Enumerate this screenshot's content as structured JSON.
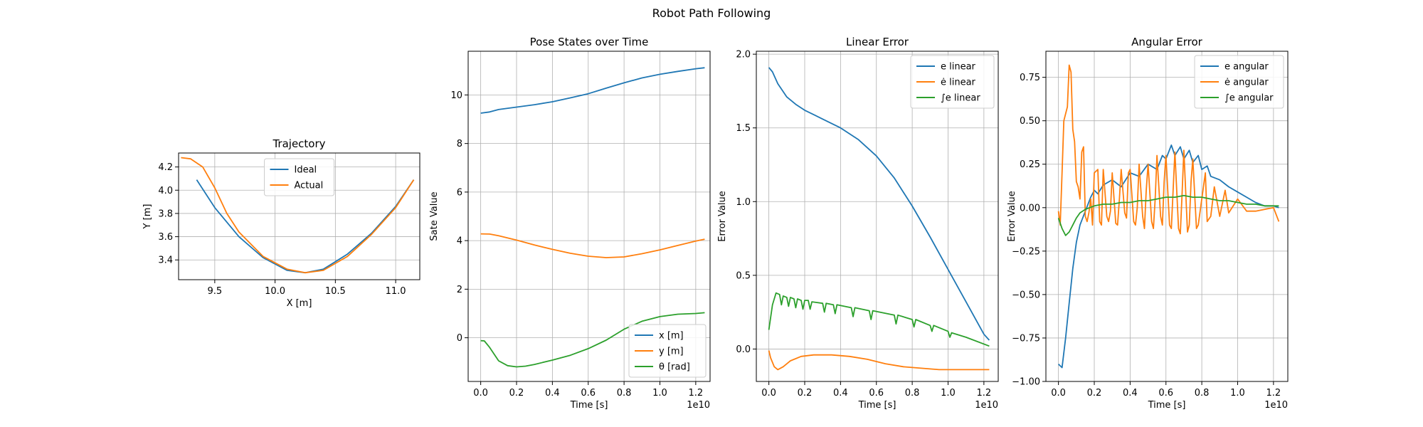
{
  "figure": {
    "title": "Robot Path Following"
  },
  "colors": {
    "c0": "#1f77b4",
    "c1": "#ff7f0e",
    "c2": "#2ca02c",
    "grid": "#b0b0b0"
  },
  "chart_data": [
    {
      "type": "line",
      "title": "Trajectory",
      "xlabel": "X [m]",
      "ylabel": "Y [m]",
      "xlim": [
        9.2,
        11.2
      ],
      "ylim": [
        3.23,
        4.32
      ],
      "xticks": [
        9.5,
        10.0,
        10.5,
        11.0
      ],
      "xtick_labels": [
        "9.5",
        "10.0",
        "10.5",
        "11.0"
      ],
      "yticks": [
        3.4,
        3.6,
        3.8,
        4.0,
        4.2
      ],
      "ytick_labels": [
        "3.4",
        "3.6",
        "3.8",
        "4.0",
        "4.2"
      ],
      "grid": true,
      "legend": "upper-center",
      "series": [
        {
          "name": "Ideal",
          "color": "c0",
          "x": [
            9.35,
            9.5,
            9.7,
            9.9,
            10.1,
            10.25,
            10.4,
            10.6,
            10.8,
            11.0,
            11.15
          ],
          "y": [
            4.09,
            3.85,
            3.6,
            3.42,
            3.31,
            3.29,
            3.32,
            3.45,
            3.63,
            3.86,
            4.09
          ]
        },
        {
          "name": "Actual",
          "color": "c1",
          "x": [
            9.22,
            9.3,
            9.4,
            9.5,
            9.6,
            9.7,
            9.9,
            10.1,
            10.25,
            10.4,
            10.6,
            10.8,
            11.0,
            11.15
          ],
          "y": [
            4.28,
            4.27,
            4.2,
            4.02,
            3.8,
            3.64,
            3.43,
            3.32,
            3.29,
            3.31,
            3.43,
            3.62,
            3.85,
            4.09
          ]
        }
      ]
    },
    {
      "type": "line",
      "title": "Pose States over Time",
      "xlabel": "Time [s]",
      "ylabel": "Sate Value",
      "x_offset_label": "1e10",
      "xlim": [
        -0.07,
        1.28
      ],
      "ylim": [
        -1.8,
        11.8
      ],
      "xticks": [
        0.0,
        0.2,
        0.4,
        0.6,
        0.8,
        1.0,
        1.2
      ],
      "xtick_labels": [
        "0.0",
        "0.2",
        "0.4",
        "0.6",
        "0.8",
        "1.0",
        "1.2"
      ],
      "yticks": [
        0,
        2,
        4,
        6,
        8,
        10
      ],
      "ytick_labels": [
        "0",
        "2",
        "4",
        "6",
        "8",
        "10"
      ],
      "grid": true,
      "legend": "lower-right",
      "series": [
        {
          "name": "x [m]",
          "color": "c0",
          "x": [
            0.0,
            0.05,
            0.1,
            0.2,
            0.3,
            0.4,
            0.5,
            0.6,
            0.7,
            0.8,
            0.9,
            1.0,
            1.1,
            1.2,
            1.25
          ],
          "y": [
            9.25,
            9.3,
            9.4,
            9.5,
            9.6,
            9.72,
            9.88,
            10.05,
            10.28,
            10.5,
            10.7,
            10.85,
            10.97,
            11.08,
            11.12
          ]
        },
        {
          "name": "y [m]",
          "color": "c1",
          "x": [
            0.0,
            0.05,
            0.1,
            0.2,
            0.3,
            0.4,
            0.5,
            0.6,
            0.7,
            0.8,
            0.9,
            1.0,
            1.1,
            1.2,
            1.25
          ],
          "y": [
            4.28,
            4.27,
            4.2,
            4.02,
            3.82,
            3.64,
            3.48,
            3.36,
            3.3,
            3.33,
            3.46,
            3.62,
            3.8,
            3.98,
            4.06
          ]
        },
        {
          "name": "θ [rad]",
          "color": "c2",
          "x": [
            0.0,
            0.02,
            0.05,
            0.1,
            0.15,
            0.2,
            0.25,
            0.3,
            0.4,
            0.5,
            0.6,
            0.7,
            0.8,
            0.9,
            1.0,
            1.1,
            1.2,
            1.25
          ],
          "y": [
            -0.12,
            -0.13,
            -0.4,
            -0.95,
            -1.15,
            -1.2,
            -1.17,
            -1.1,
            -0.92,
            -0.72,
            -0.45,
            -0.1,
            0.35,
            0.68,
            0.87,
            0.97,
            1.0,
            1.03
          ]
        }
      ]
    },
    {
      "type": "line",
      "title": "Linear Error",
      "xlabel": "Time [s]",
      "ylabel": "Error Value",
      "x_offset_label": "1e10",
      "xlim": [
        -0.07,
        1.28
      ],
      "ylim": [
        -0.22,
        2.02
      ],
      "xticks": [
        0.0,
        0.2,
        0.4,
        0.6,
        0.8,
        1.0,
        1.2
      ],
      "xtick_labels": [
        "0.0",
        "0.2",
        "0.4",
        "0.6",
        "0.8",
        "1.0",
        "1.2"
      ],
      "yticks": [
        0.0,
        0.5,
        1.0,
        1.5,
        2.0
      ],
      "ytick_labels": [
        "0.0",
        "0.5",
        "1.0",
        "1.5",
        "2.0"
      ],
      "grid": true,
      "legend": "upper-right",
      "series": [
        {
          "name": "e linear",
          "color": "c0",
          "x": [
            0.0,
            0.02,
            0.05,
            0.1,
            0.15,
            0.2,
            0.3,
            0.4,
            0.5,
            0.6,
            0.7,
            0.8,
            0.9,
            1.0,
            1.1,
            1.2,
            1.23
          ],
          "y": [
            1.91,
            1.88,
            1.8,
            1.71,
            1.66,
            1.62,
            1.56,
            1.5,
            1.42,
            1.31,
            1.16,
            0.97,
            0.76,
            0.54,
            0.32,
            0.1,
            0.06
          ]
        },
        {
          "name": "ė linear",
          "color": "c1",
          "x": [
            0.0,
            0.01,
            0.03,
            0.05,
            0.08,
            0.12,
            0.18,
            0.25,
            0.35,
            0.45,
            0.55,
            0.65,
            0.75,
            0.85,
            0.95,
            1.05,
            1.15,
            1.23
          ],
          "y": [
            -0.01,
            -0.06,
            -0.12,
            -0.14,
            -0.12,
            -0.08,
            -0.05,
            -0.04,
            -0.04,
            -0.05,
            -0.07,
            -0.1,
            -0.12,
            -0.13,
            -0.14,
            -0.14,
            -0.14,
            -0.14
          ]
        },
        {
          "name": "∫e linear",
          "color": "c2",
          "x": [
            0.0,
            0.02,
            0.04,
            0.06,
            0.07,
            0.08,
            0.1,
            0.11,
            0.12,
            0.14,
            0.15,
            0.16,
            0.18,
            0.19,
            0.2,
            0.22,
            0.23,
            0.24,
            0.3,
            0.31,
            0.32,
            0.36,
            0.37,
            0.38,
            0.46,
            0.47,
            0.48,
            0.56,
            0.57,
            0.58,
            0.7,
            0.71,
            0.72,
            0.8,
            0.81,
            0.82,
            0.9,
            0.91,
            0.92,
            1.0,
            1.01,
            1.02,
            1.1,
            1.23
          ],
          "y": [
            0.13,
            0.3,
            0.38,
            0.37,
            0.3,
            0.36,
            0.35,
            0.29,
            0.35,
            0.34,
            0.28,
            0.34,
            0.33,
            0.27,
            0.33,
            0.33,
            0.27,
            0.32,
            0.31,
            0.25,
            0.31,
            0.3,
            0.24,
            0.3,
            0.28,
            0.22,
            0.28,
            0.26,
            0.2,
            0.26,
            0.23,
            0.17,
            0.23,
            0.2,
            0.15,
            0.2,
            0.16,
            0.12,
            0.16,
            0.12,
            0.08,
            0.11,
            0.08,
            0.02
          ]
        }
      ]
    },
    {
      "type": "line",
      "title": "Angular Error",
      "xlabel": "Time [s]",
      "ylabel": "Error Value",
      "x_offset_label": "1e10",
      "xlim": [
        -0.07,
        1.28
      ],
      "ylim": [
        -1.0,
        0.9
      ],
      "xticks": [
        0.0,
        0.2,
        0.4,
        0.6,
        0.8,
        1.0,
        1.2
      ],
      "xtick_labels": [
        "0.0",
        "0.2",
        "0.4",
        "0.6",
        "0.8",
        "1.0",
        "1.2"
      ],
      "yticks": [
        -1.0,
        -0.75,
        -0.5,
        -0.25,
        0.0,
        0.25,
        0.5,
        0.75
      ],
      "ytick_labels": [
        "−1.00",
        "−0.75",
        "−0.50",
        "−0.25",
        "0.00",
        "0.25",
        "0.50",
        "0.75"
      ],
      "grid": true,
      "legend": "upper-right",
      "series": [
        {
          "name": "e angular",
          "color": "c0",
          "x": [
            0.0,
            0.02,
            0.04,
            0.06,
            0.08,
            0.1,
            0.12,
            0.15,
            0.18,
            0.2,
            0.22,
            0.25,
            0.3,
            0.35,
            0.4,
            0.45,
            0.5,
            0.55,
            0.58,
            0.6,
            0.63,
            0.65,
            0.68,
            0.7,
            0.73,
            0.75,
            0.78,
            0.8,
            0.83,
            0.85,
            0.9,
            0.95,
            1.0,
            1.05,
            1.1,
            1.15,
            1.2,
            1.23
          ],
          "y": [
            -0.9,
            -0.92,
            -0.75,
            -0.55,
            -0.35,
            -0.2,
            -0.1,
            -0.02,
            0.06,
            0.1,
            0.08,
            0.13,
            0.16,
            0.12,
            0.2,
            0.18,
            0.25,
            0.22,
            0.3,
            0.28,
            0.36,
            0.3,
            0.35,
            0.28,
            0.33,
            0.26,
            0.3,
            0.22,
            0.24,
            0.18,
            0.16,
            0.12,
            0.09,
            0.06,
            0.03,
            0.01,
            0.01,
            0.0
          ]
        },
        {
          "name": "ė angular",
          "color": "c1",
          "x": [
            0.0,
            0.01,
            0.02,
            0.03,
            0.05,
            0.06,
            0.07,
            0.08,
            0.09,
            0.1,
            0.11,
            0.12,
            0.13,
            0.14,
            0.15,
            0.16,
            0.17,
            0.18,
            0.19,
            0.2,
            0.22,
            0.23,
            0.24,
            0.25,
            0.27,
            0.28,
            0.29,
            0.3,
            0.32,
            0.33,
            0.34,
            0.35,
            0.37,
            0.38,
            0.39,
            0.4,
            0.42,
            0.43,
            0.44,
            0.45,
            0.47,
            0.48,
            0.49,
            0.5,
            0.52,
            0.53,
            0.54,
            0.55,
            0.57,
            0.58,
            0.59,
            0.6,
            0.62,
            0.63,
            0.64,
            0.65,
            0.67,
            0.68,
            0.69,
            0.7,
            0.72,
            0.73,
            0.74,
            0.75,
            0.77,
            0.78,
            0.8,
            0.82,
            0.83,
            0.85,
            0.87,
            0.9,
            0.93,
            0.95,
            1.0,
            1.05,
            1.1,
            1.15,
            1.2,
            1.23
          ],
          "y": [
            -0.02,
            -0.1,
            0.2,
            0.5,
            0.58,
            0.82,
            0.78,
            0.45,
            0.38,
            0.15,
            0.12,
            0.05,
            0.32,
            0.35,
            -0.05,
            -0.08,
            -0.03,
            0.05,
            -0.1,
            0.2,
            0.22,
            -0.08,
            -0.1,
            0.22,
            -0.05,
            -0.08,
            -0.02,
            0.2,
            -0.09,
            -0.1,
            0.05,
            0.22,
            -0.03,
            -0.06,
            0.2,
            0.22,
            -0.08,
            -0.1,
            0.0,
            0.25,
            -0.05,
            -0.12,
            0.1,
            0.25,
            -0.08,
            -0.12,
            0.05,
            0.3,
            -0.05,
            -0.1,
            0.15,
            0.3,
            -0.1,
            -0.12,
            0.1,
            0.32,
            -0.12,
            -0.15,
            0.08,
            0.33,
            -0.14,
            -0.1,
            0.15,
            0.28,
            -0.12,
            -0.1,
            0.05,
            0.2,
            -0.08,
            -0.05,
            0.12,
            -0.05,
            0.1,
            -0.03,
            0.05,
            -0.02,
            -0.02,
            -0.01,
            0.0,
            -0.08
          ]
        },
        {
          "name": "∫e angular",
          "color": "c2",
          "x": [
            0.0,
            0.02,
            0.04,
            0.06,
            0.08,
            0.1,
            0.12,
            0.15,
            0.2,
            0.25,
            0.3,
            0.35,
            0.4,
            0.45,
            0.5,
            0.55,
            0.6,
            0.65,
            0.7,
            0.75,
            0.8,
            0.85,
            0.9,
            0.95,
            1.0,
            1.05,
            1.1,
            1.15,
            1.2,
            1.23
          ],
          "y": [
            -0.06,
            -0.12,
            -0.16,
            -0.14,
            -0.1,
            -0.06,
            -0.03,
            -0.01,
            0.01,
            0.02,
            0.02,
            0.03,
            0.03,
            0.04,
            0.04,
            0.05,
            0.06,
            0.06,
            0.07,
            0.06,
            0.06,
            0.05,
            0.04,
            0.04,
            0.03,
            0.02,
            0.02,
            0.01,
            0.01,
            0.01
          ]
        }
      ]
    }
  ]
}
